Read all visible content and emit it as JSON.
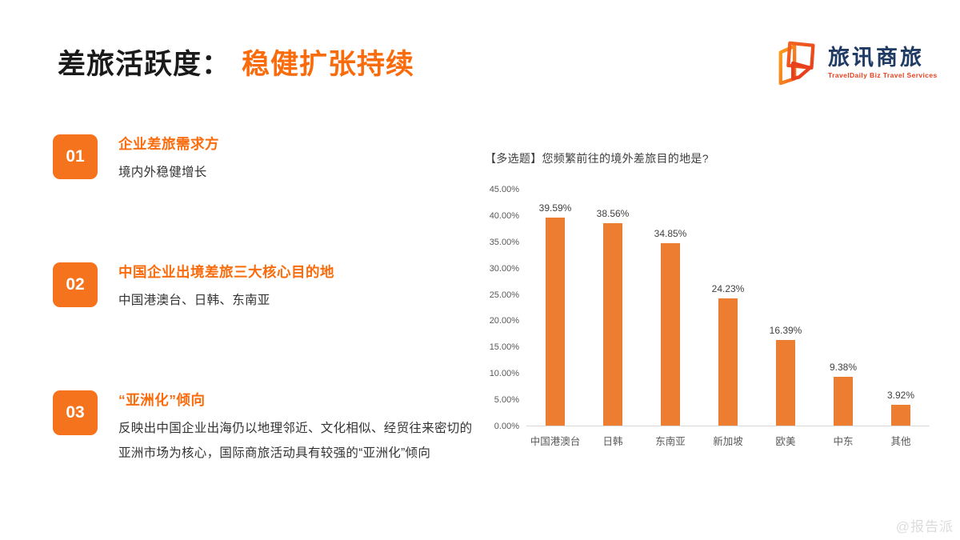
{
  "header": {
    "title_black": "差旅活跃度：",
    "title_orange": "稳健扩张持续",
    "logo": {
      "name": "旅讯商旅",
      "tagline": "TravelDaily Biz Travel Services"
    }
  },
  "points": [
    {
      "num": "01",
      "heading": "企业差旅需求方",
      "body": "境内外稳健增长"
    },
    {
      "num": "02",
      "heading": "中国企业出境差旅三大核心目的地",
      "body": "中国港澳台、日韩、东南亚"
    },
    {
      "num": "03",
      "heading": "“亚洲化”倾向",
      "body": "反映出中国企业出海仍以地理邻近、文化相似、经贸往来密切的亚洲市场为核心，国际商旅活动具有较强的“亚洲化”倾向"
    }
  ],
  "chart_data": {
    "type": "bar",
    "title": "【多选题】您频繁前往的境外差旅目的地是?",
    "categories": [
      "中国港澳台",
      "日韩",
      "东南亚",
      "新加坡",
      "欧美",
      "中东",
      "其他"
    ],
    "values": [
      39.59,
      38.56,
      34.85,
      24.23,
      16.39,
      9.38,
      3.92
    ],
    "data_labels": [
      "39.59%",
      "38.56%",
      "34.85%",
      "24.23%",
      "16.39%",
      "9.38%",
      "3.92%"
    ],
    "yticks": [
      "45.00%",
      "40.00%",
      "35.00%",
      "30.00%",
      "25.00%",
      "20.00%",
      "15.00%",
      "10.00%",
      "5.00%",
      "0.00%"
    ],
    "ylim": [
      0,
      45
    ],
    "xlabel": "",
    "ylabel": "",
    "grid": false,
    "legend": false,
    "bar_color": "#ED7D31"
  },
  "colors": {
    "accent": "#FA6B0C",
    "badge": "#F4731C",
    "bar": "#ED7D31",
    "logo_navy": "#1F3A63",
    "logo_red": "#E8401C",
    "axis_line": "#D9D9D9"
  },
  "watermark": "@报告派"
}
